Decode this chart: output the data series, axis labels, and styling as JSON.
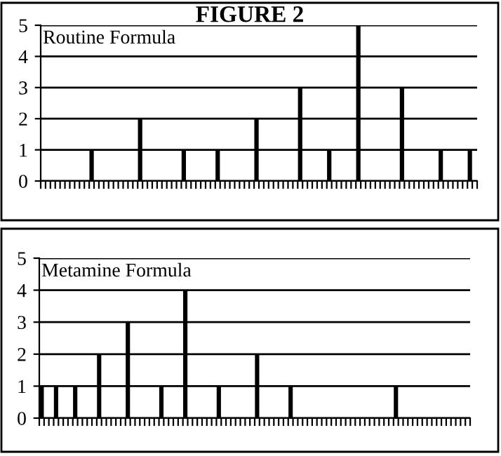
{
  "chart_data": [
    {
      "type": "bar",
      "title": "FIGURE 2",
      "subtitle": "Routine Formula",
      "categories": [
        null,
        null,
        null,
        null,
        null,
        null,
        null,
        null,
        null,
        null,
        null,
        null,
        null,
        null,
        null,
        null,
        null,
        null,
        null,
        null,
        null,
        null,
        null,
        null,
        null,
        null,
        null,
        null,
        null,
        null,
        null,
        null,
        null,
        null,
        null,
        null,
        null,
        null,
        null,
        null,
        null,
        null,
        null,
        null,
        null,
        null,
        null,
        null,
        null,
        null,
        null,
        null,
        null,
        null,
        null,
        null,
        null,
        null,
        null,
        null,
        null,
        null,
        null,
        null,
        null,
        null,
        null,
        null,
        null,
        null,
        null,
        null,
        null,
        null,
        null,
        null,
        null,
        null,
        null,
        null,
        null,
        null,
        null,
        null,
        null,
        null,
        null,
        null,
        null,
        null
      ],
      "values": [
        null,
        null,
        null,
        null,
        null,
        null,
        null,
        null,
        null,
        null,
        1,
        null,
        null,
        null,
        null,
        null,
        null,
        null,
        null,
        null,
        2,
        null,
        null,
        null,
        null,
        null,
        null,
        null,
        null,
        1,
        null,
        null,
        null,
        null,
        null,
        null,
        1,
        null,
        null,
        null,
        null,
        null,
        null,
        null,
        2,
        null,
        null,
        null,
        null,
        null,
        null,
        null,
        null,
        3,
        null,
        null,
        null,
        null,
        null,
        1,
        null,
        null,
        null,
        null,
        null,
        5,
        null,
        null,
        null,
        null,
        null,
        null,
        null,
        null,
        3,
        null,
        null,
        null,
        null,
        null,
        null,
        null,
        1,
        null,
        null,
        null,
        null,
        null,
        1,
        null
      ],
      "color": "#000000",
      "ylim": [
        0,
        5
      ],
      "yticks": [
        0,
        1,
        2,
        3,
        4,
        5
      ],
      "grid": "y",
      "tick_labels": "y"
    },
    {
      "type": "bar",
      "subtitle": "Metamine Formula",
      "categories": [
        null,
        null,
        null,
        null,
        null,
        null,
        null,
        null,
        null,
        null,
        null,
        null,
        null,
        null,
        null,
        null,
        null,
        null,
        null,
        null,
        null,
        null,
        null,
        null,
        null,
        null,
        null,
        null,
        null,
        null,
        null,
        null,
        null,
        null,
        null,
        null,
        null,
        null,
        null,
        null,
        null,
        null,
        null,
        null,
        null,
        null,
        null,
        null,
        null,
        null,
        null,
        null,
        null,
        null,
        null,
        null,
        null,
        null,
        null,
        null,
        null,
        null,
        null,
        null,
        null,
        null,
        null,
        null,
        null,
        null,
        null,
        null,
        null,
        null,
        null,
        null,
        null,
        null,
        null,
        null,
        null,
        null,
        null,
        null,
        null,
        null,
        null,
        null,
        null,
        null
      ],
      "values": [
        1,
        null,
        null,
        1,
        null,
        null,
        null,
        1,
        null,
        null,
        null,
        null,
        2,
        null,
        null,
        null,
        null,
        null,
        3,
        null,
        null,
        null,
        null,
        null,
        null,
        1,
        null,
        null,
        null,
        null,
        4,
        null,
        null,
        null,
        null,
        null,
        null,
        1,
        null,
        null,
        null,
        null,
        null,
        null,
        null,
        2,
        null,
        null,
        null,
        null,
        null,
        null,
        1,
        null,
        null,
        null,
        null,
        null,
        null,
        null,
        null,
        null,
        null,
        null,
        null,
        null,
        null,
        null,
        null,
        null,
        null,
        null,
        null,
        null,
        1,
        null,
        null,
        null,
        null,
        null,
        null,
        null,
        null,
        null,
        null,
        null,
        null,
        null,
        null,
        null
      ],
      "color": "#000000",
      "ylim": [
        0,
        5
      ],
      "yticks": [
        0,
        1,
        2,
        3,
        4,
        5
      ],
      "grid": "y",
      "tick_labels": "y"
    }
  ]
}
